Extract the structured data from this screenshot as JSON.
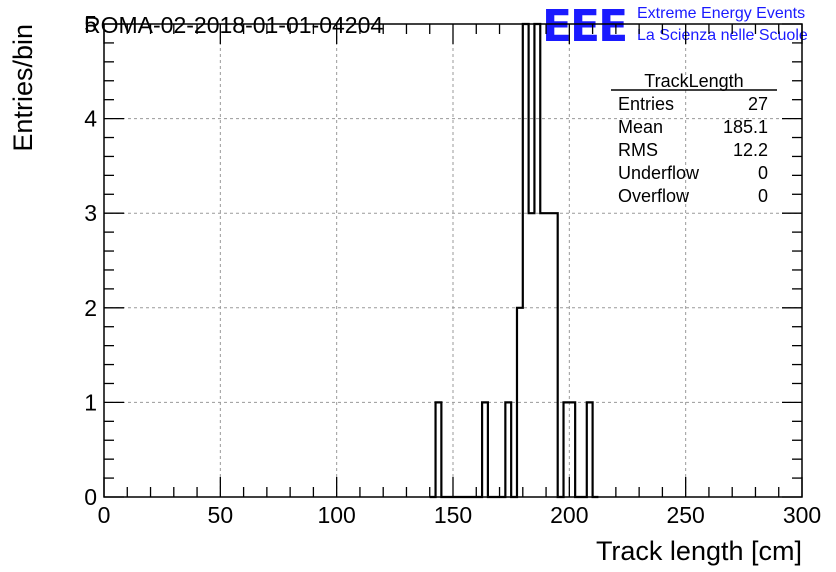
{
  "chart_data": {
    "type": "bar",
    "title": "ROMA-02-2018-01-01-04204",
    "xlabel": "Track length [cm]",
    "ylabel": "Entries/bin",
    "xlim": [
      0,
      300
    ],
    "ylim": [
      0,
      5
    ],
    "bin_width": 2.5,
    "xticks": [
      "0",
      "50",
      "100",
      "150",
      "200",
      "250",
      "300"
    ],
    "yticks": [
      "0",
      "1",
      "2",
      "3",
      "4",
      "5"
    ],
    "grid": true,
    "bins": [
      {
        "x": 140,
        "y": 0
      },
      {
        "x": 142.5,
        "y": 1
      },
      {
        "x": 145,
        "y": 0
      },
      {
        "x": 162.5,
        "y": 1
      },
      {
        "x": 165,
        "y": 0
      },
      {
        "x": 172.5,
        "y": 1
      },
      {
        "x": 175,
        "y": 0
      },
      {
        "x": 177.5,
        "y": 2
      },
      {
        "x": 180,
        "y": 5
      },
      {
        "x": 182.5,
        "y": 3
      },
      {
        "x": 185,
        "y": 5
      },
      {
        "x": 187.5,
        "y": 3
      },
      {
        "x": 190,
        "y": 3
      },
      {
        "x": 195,
        "y": 0
      },
      {
        "x": 197.5,
        "y": 1
      },
      {
        "x": 200,
        "y": 1
      },
      {
        "x": 202.5,
        "y": 0
      },
      {
        "x": 207.5,
        "y": 1
      },
      {
        "x": 210,
        "y": 0
      }
    ],
    "series_color": "#000000",
    "stats_box": {
      "name": "TrackLength",
      "rows": [
        {
          "label": "Entries",
          "value": "27"
        },
        {
          "label": "Mean",
          "value": "185.1"
        },
        {
          "label": "RMS",
          "value": "12.2"
        },
        {
          "label": "Underflow",
          "value": "0"
        },
        {
          "label": "Overflow",
          "value": "0"
        }
      ],
      "placement": "top-right"
    }
  },
  "logo": {
    "mark": "EEE",
    "line1": "Extreme Energy Events",
    "line2": "La Scienza nelle Scuole",
    "color": "#1a1aff"
  }
}
